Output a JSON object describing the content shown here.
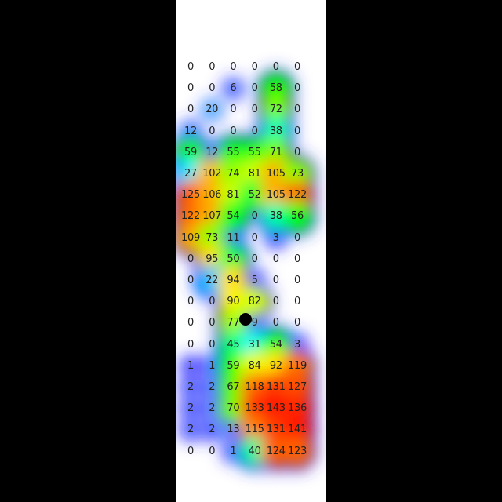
{
  "chart_data": {
    "type": "heatmap",
    "columns": 6,
    "rows": 19,
    "values": [
      [
        "0",
        "0",
        "0",
        "0",
        "0",
        "0"
      ],
      [
        "0",
        "0",
        "6",
        "0",
        "58",
        "0"
      ],
      [
        "0",
        "20",
        "0",
        "0",
        "72",
        "0"
      ],
      [
        "12",
        "0",
        "0",
        "0",
        "38",
        "0"
      ],
      [
        "59",
        "12",
        "55",
        "55",
        "71",
        "0"
      ],
      [
        "27",
        "102",
        "74",
        "81",
        "105",
        "73"
      ],
      [
        "125",
        "106",
        "81",
        "52",
        "105",
        "122"
      ],
      [
        "122",
        "107",
        "54",
        "0",
        "38",
        "56"
      ],
      [
        "109",
        "73",
        "11",
        "0",
        "3",
        "0"
      ],
      [
        "0",
        "95",
        "50",
        "0",
        "0",
        "0"
      ],
      [
        "0",
        "22",
        "94",
        "5",
        "0",
        "0"
      ],
      [
        "0",
        "0",
        "90",
        "82",
        "0",
        "0"
      ],
      [
        "0",
        "0",
        "77",
        "9",
        "0",
        "0"
      ],
      [
        "0",
        "0",
        "45",
        "31",
        "54",
        "3"
      ],
      [
        "1",
        "1",
        "59",
        "84",
        "92",
        "119"
      ],
      [
        "2",
        "2",
        "67",
        "118",
        "131",
        "127"
      ],
      [
        "2",
        "2",
        "70",
        "133",
        "143",
        "136"
      ],
      [
        "2",
        "2",
        "13",
        "115",
        "131",
        "141"
      ],
      [
        "0",
        "0",
        "1",
        "40",
        "124",
        "123"
      ]
    ],
    "colormap": [
      "#0000ff",
      "#00ffff",
      "#00ff00",
      "#ffff00",
      "#ff8000",
      "#ff0000"
    ],
    "marker_color": "#000000"
  }
}
